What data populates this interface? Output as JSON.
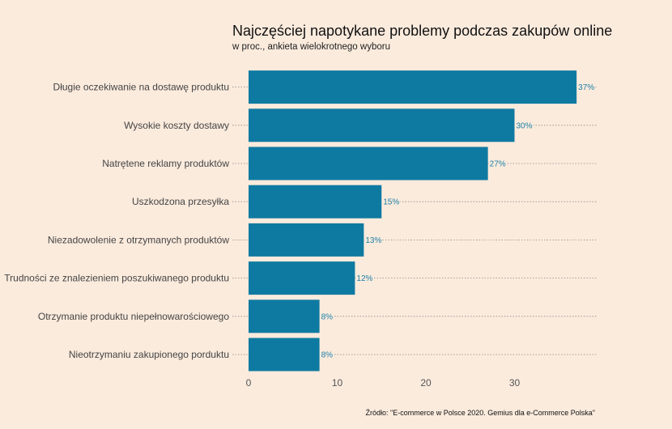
{
  "chart_data": {
    "type": "bar",
    "orientation": "horizontal",
    "title": "Najczęściej napotykane problemy podczas zakupów online",
    "subtitle": "w proc., ankieta wielokrotnego wyboru",
    "categories": [
      "Długie oczekiwanie na dostawę produktu",
      "Wysokie koszty dostawy",
      "Natrętene reklamy produktów",
      "Uszkodzona przesyłka",
      "Niezadowolenie z otrzymanych produktów",
      "Trudności ze znalezieniem poszukiwanego produktu",
      "Otrzymanie produktu niepełnowarościowego",
      "Nieotrzymaniu zakupionego porduktu"
    ],
    "values": [
      37,
      30,
      27,
      15,
      13,
      12,
      8,
      8
    ],
    "value_labels": [
      "37%",
      "30%",
      "27%",
      "15%",
      "13%",
      "12%",
      "8%",
      "8%"
    ],
    "x_ticks": [
      "0",
      "10",
      "20",
      "30"
    ],
    "xlim": [
      0,
      39
    ],
    "grid": "dotted horizontal guides per category",
    "bar_color": "#0f7aa1",
    "label_color": "#1a7fa6",
    "background": "#fbebdd",
    "source": "Źródło: \"E-commerce w Polsce 2020. Gemius dla e-Commerce Polska\""
  }
}
